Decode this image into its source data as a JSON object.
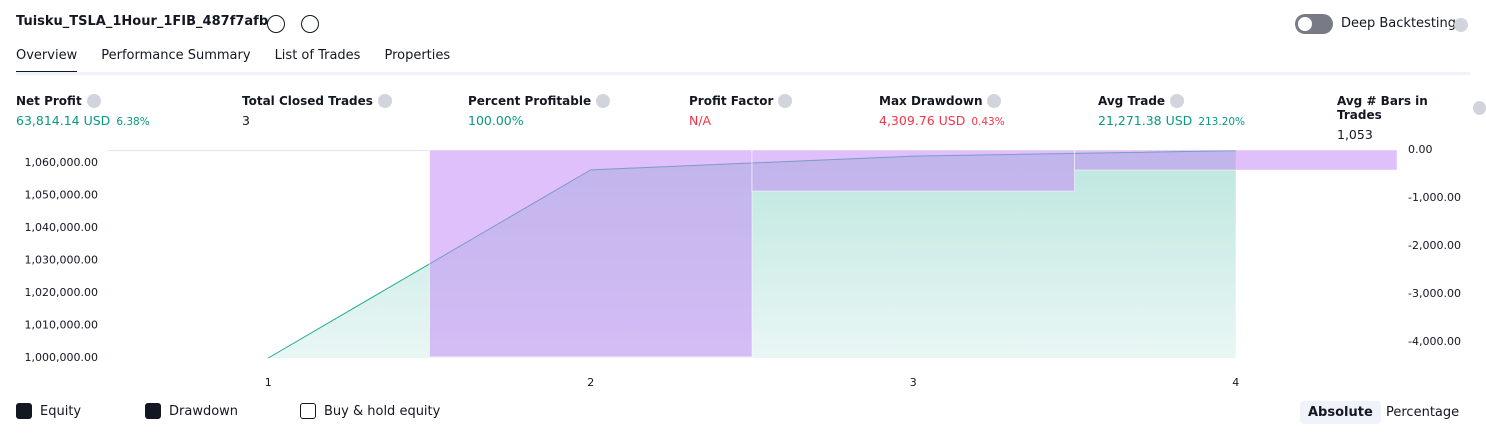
{
  "header": {
    "title": "Tuisku_TSLA_1Hour_1FIB_487f7afb",
    "toggle_label": "Deep Backtesting"
  },
  "tabs": [
    "Overview",
    "Performance Summary",
    "List of Trades",
    "Properties"
  ],
  "metrics": [
    {
      "label": "Net Profit",
      "value": "63,814.14 USD",
      "percent": "6.38%",
      "tone": "green"
    },
    {
      "label": "Total Closed Trades",
      "value": "3",
      "tone": "plain"
    },
    {
      "label": "Percent Profitable",
      "value": "100.00%",
      "tone": "green"
    },
    {
      "label": "Profit Factor",
      "value": "N/A",
      "tone": "red"
    },
    {
      "label": "Max Drawdown",
      "value": "4,309.76 USD",
      "percent": "0.43%",
      "tone": "red"
    },
    {
      "label": "Avg Trade",
      "value": "21,271.38 USD",
      "percent": "213.20%",
      "tone": "green"
    },
    {
      "label": "Avg # Bars in Trades",
      "value": "1,053",
      "tone": "plain"
    }
  ],
  "chart_data": {
    "type": "line",
    "categories": [
      "1",
      "2",
      "3",
      "4"
    ],
    "series": [
      {
        "name": "Equity",
        "type": "area",
        "color": "#22ab94",
        "axis": "y",
        "values": [
          1000000,
          1057900,
          1062100,
          1063814.14
        ]
      },
      {
        "name": "Drawdown",
        "type": "bar",
        "color": "#c58cf5",
        "axis": "y2",
        "values": [
          0,
          -4309.76,
          -854,
          -417
        ]
      }
    ],
    "ylim": [
      1000000,
      1064000
    ],
    "yticks": [
      {
        "value": 1000000,
        "label": "1,000,000.00"
      },
      {
        "value": 1010000,
        "label": "1,010,000.00"
      },
      {
        "value": 1020000,
        "label": "1,020,000.00"
      },
      {
        "value": 1030000,
        "label": "1,030,000.00"
      },
      {
        "value": 1040000,
        "label": "1,040,000.00"
      },
      {
        "value": 1050000,
        "label": "1,050,000.00"
      },
      {
        "value": 1060000,
        "label": "1,060,000.00"
      }
    ],
    "y2lim": [
      -4333,
      0
    ],
    "y2ticks": [
      {
        "value": 0,
        "label": "0.00"
      },
      {
        "value": -1000,
        "label": "-1,000.00"
      },
      {
        "value": -2000,
        "label": "-2,000.00"
      },
      {
        "value": -3000,
        "label": "-3,000.00"
      },
      {
        "value": -4000,
        "label": "-4,000.00"
      }
    ]
  },
  "footer": {
    "extra_option": "Buy & hold equity",
    "buttons": [
      "Absolute",
      "Percentage"
    ]
  }
}
